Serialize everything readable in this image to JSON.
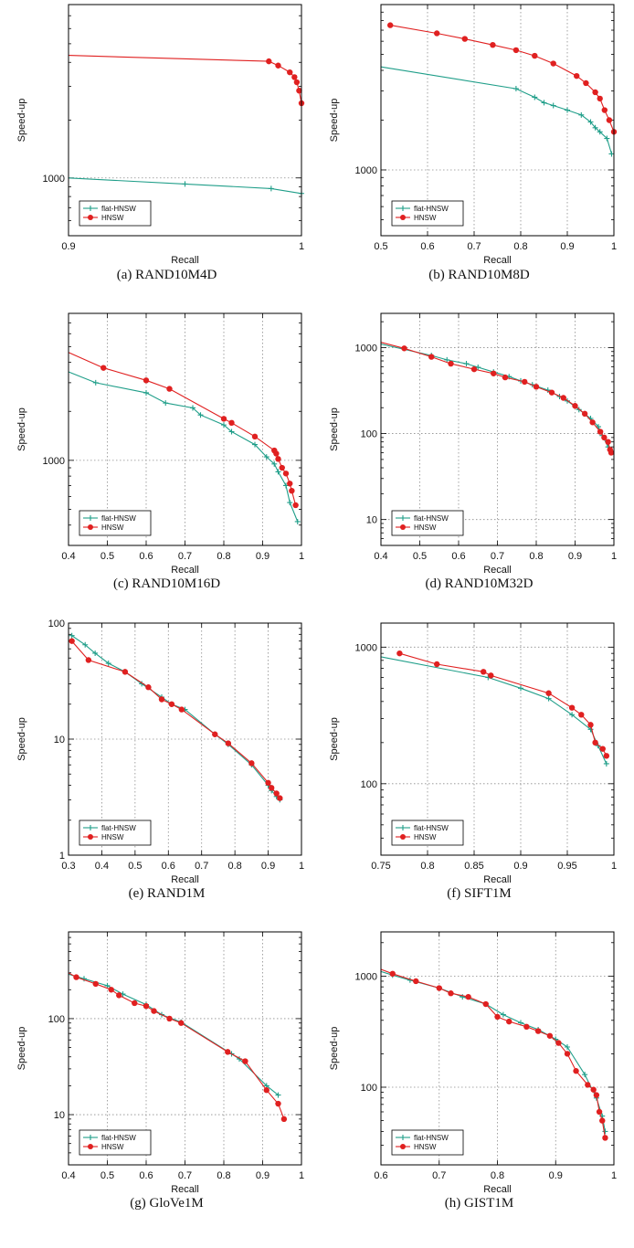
{
  "colors": {
    "flat_hnsw": "#1f9e89",
    "hnsw": "#e02020",
    "grid": "#8c8c8c",
    "axis": "#000000"
  },
  "chart_data": [
    {
      "type": "line",
      "caption": "(a) RAND10M4D",
      "scale": "log",
      "xlabel": "Recall",
      "ylabel": "Speed-up",
      "xlim": [
        0.9,
        1.0
      ],
      "ylim": [
        500,
        8000
      ],
      "xticks": [
        0.9,
        1
      ],
      "xtick_labels": [
        "0.9",
        "1"
      ],
      "yticks": [
        1000
      ],
      "ytick_labels": [
        "1000"
      ],
      "grid": true,
      "legend_position": "bottom-left",
      "series": [
        {
          "name": "flat-HNSW",
          "x": [
            0.9,
            0.95,
            0.987,
            1.0
          ],
          "y": [
            1000,
            930,
            880,
            830
          ]
        },
        {
          "name": "HNSW",
          "x": [
            0.9,
            0.986,
            0.99,
            0.995,
            0.997,
            0.998,
            0.999,
            1.0
          ],
          "y": [
            4350,
            4050,
            3850,
            3550,
            3350,
            3150,
            2850,
            2450
          ]
        }
      ]
    },
    {
      "type": "line",
      "caption": "(b) RAND10M8D",
      "scale": "log",
      "xlabel": "Recall",
      "ylabel": "Speed-up",
      "xlim": [
        0.5,
        1.0
      ],
      "ylim": [
        400,
        10000
      ],
      "xticks": [
        0.5,
        0.6,
        0.7,
        0.8,
        0.9,
        1
      ],
      "xtick_labels": [
        "0.5",
        "0.6",
        "0.7",
        "0.8",
        "0.9",
        "1"
      ],
      "yticks": [
        1000
      ],
      "ytick_labels": [
        "1000"
      ],
      "grid": true,
      "legend_position": "bottom-left",
      "series": [
        {
          "name": "flat-HNSW",
          "x": [
            0.5,
            0.79,
            0.83,
            0.85,
            0.87,
            0.9,
            0.93,
            0.95,
            0.96,
            0.97,
            0.985,
            0.995
          ],
          "y": [
            4200,
            3100,
            2750,
            2550,
            2450,
            2300,
            2150,
            1950,
            1800,
            1700,
            1550,
            1250
          ]
        },
        {
          "name": "HNSW",
          "x": [
            0.52,
            0.62,
            0.68,
            0.74,
            0.79,
            0.83,
            0.87,
            0.92,
            0.94,
            0.96,
            0.97,
            0.98,
            0.99,
            1.0
          ],
          "y": [
            7500,
            6700,
            6200,
            5700,
            5300,
            4900,
            4400,
            3700,
            3350,
            2950,
            2700,
            2300,
            2000,
            1700
          ]
        }
      ]
    },
    {
      "type": "line",
      "caption": "(c) RAND10M16D",
      "scale": "log",
      "xlabel": "Recall",
      "ylabel": "Speed-up",
      "xlim": [
        0.4,
        1.0
      ],
      "ylim": [
        300,
        8000
      ],
      "xticks": [
        0.4,
        0.5,
        0.6,
        0.7,
        0.8,
        0.9,
        1
      ],
      "xtick_labels": [
        "0.4",
        "0.5",
        "0.6",
        "0.7",
        "0.8",
        "0.9",
        "1"
      ],
      "yticks": [
        1000
      ],
      "ytick_labels": [
        "1000"
      ],
      "grid": true,
      "legend_position": "bottom-left",
      "series": [
        {
          "name": "flat-HNSW",
          "x": [
            0.4,
            0.47,
            0.6,
            0.65,
            0.72,
            0.74,
            0.8,
            0.82,
            0.88,
            0.91,
            0.93,
            0.94,
            0.96,
            0.97,
            0.99
          ],
          "y": [
            3500,
            3000,
            2600,
            2250,
            2100,
            1900,
            1650,
            1500,
            1250,
            1050,
            950,
            850,
            700,
            550,
            420
          ]
        },
        {
          "name": "HNSW",
          "x": [
            0.4,
            0.49,
            0.6,
            0.66,
            0.8,
            0.82,
            0.88,
            0.93,
            0.935,
            0.94,
            0.95,
            0.96,
            0.97,
            0.975,
            0.985
          ],
          "y": [
            4600,
            3700,
            3100,
            2750,
            1800,
            1700,
            1400,
            1150,
            1100,
            1020,
            900,
            830,
            720,
            650,
            530
          ]
        }
      ]
    },
    {
      "type": "line",
      "caption": "(d) RAND10M32D",
      "scale": "log",
      "xlabel": "Recall",
      "ylabel": "Speed-up",
      "xlim": [
        0.4,
        1.0
      ],
      "ylim": [
        5,
        2500
      ],
      "xticks": [
        0.4,
        0.5,
        0.6,
        0.7,
        0.8,
        0.9,
        1
      ],
      "xtick_labels": [
        "0.4",
        "0.5",
        "0.6",
        "0.7",
        "0.8",
        "0.9",
        "1"
      ],
      "yticks": [
        10,
        100,
        1000
      ],
      "ytick_labels": [
        "10",
        "100",
        "1000"
      ],
      "grid": true,
      "legend_position": "bottom-left",
      "series": [
        {
          "name": "flat-HNSW",
          "x": [
            0.4,
            0.53,
            0.57,
            0.62,
            0.65,
            0.69,
            0.73,
            0.76,
            0.79,
            0.83,
            0.86,
            0.88,
            0.91,
            0.94,
            0.96,
            0.97,
            0.985
          ],
          "y": [
            1100,
            810,
            720,
            650,
            590,
            520,
            460,
            410,
            370,
            320,
            270,
            240,
            190,
            150,
            120,
            95,
            70
          ]
        },
        {
          "name": "HNSW",
          "x": [
            0.4,
            0.46,
            0.53,
            0.58,
            0.64,
            0.69,
            0.72,
            0.77,
            0.8,
            0.84,
            0.87,
            0.9,
            0.925,
            0.945,
            0.965,
            0.975,
            0.985,
            0.99,
            0.993
          ],
          "y": [
            1150,
            980,
            780,
            650,
            560,
            500,
            450,
            400,
            350,
            300,
            260,
            210,
            170,
            135,
            105,
            90,
            80,
            65,
            60
          ]
        }
      ]
    },
    {
      "type": "line",
      "caption": "(e) RAND1M",
      "scale": "log",
      "xlabel": "Recall",
      "ylabel": "Speed-up",
      "xlim": [
        0.3,
        1.0
      ],
      "ylim": [
        1,
        100
      ],
      "xticks": [
        0.3,
        0.4,
        0.5,
        0.6,
        0.7,
        0.8,
        0.9,
        1
      ],
      "xtick_labels": [
        "0.3",
        "0.4",
        "0.5",
        "0.6",
        "0.7",
        "0.8",
        "0.9",
        "1"
      ],
      "yticks": [
        1,
        10,
        100
      ],
      "ytick_labels": [
        "1",
        "10",
        "100"
      ],
      "grid": true,
      "legend_position": "bottom-left",
      "series": [
        {
          "name": "flat-HNSW",
          "x": [
            0.31,
            0.35,
            0.38,
            0.42,
            0.47,
            0.52,
            0.58,
            0.61,
            0.65,
            0.74,
            0.78,
            0.85,
            0.9,
            0.91,
            0.925,
            0.935
          ],
          "y": [
            78,
            65,
            55,
            45,
            38,
            30,
            23,
            20,
            18,
            11,
            9,
            6,
            4,
            3.6,
            3.2,
            3
          ]
        },
        {
          "name": "HNSW",
          "x": [
            0.31,
            0.36,
            0.47,
            0.54,
            0.58,
            0.61,
            0.64,
            0.74,
            0.78,
            0.85,
            0.9,
            0.91,
            0.925,
            0.935
          ],
          "y": [
            70,
            48,
            38,
            28,
            22,
            20,
            18,
            11,
            9.2,
            6.2,
            4.2,
            3.8,
            3.4,
            3.1
          ]
        }
      ]
    },
    {
      "type": "line",
      "caption": "(f) SIFT1M",
      "scale": "log",
      "xlabel": "Recall",
      "ylabel": "Speed-up",
      "xlim": [
        0.75,
        1.0
      ],
      "ylim": [
        30,
        1500
      ],
      "xticks": [
        0.75,
        0.8,
        0.85,
        0.9,
        0.95,
        1
      ],
      "xtick_labels": [
        "0.75",
        "0.8",
        "0.85",
        "0.9",
        "0.95",
        "1"
      ],
      "yticks": [
        100,
        1000
      ],
      "ytick_labels": [
        "100",
        "1000"
      ],
      "grid": true,
      "legend_position": "bottom-left",
      "series": [
        {
          "name": "flat-HNSW",
          "x": [
            0.75,
            0.865,
            0.9,
            0.93,
            0.955,
            0.975,
            0.983,
            0.992
          ],
          "y": [
            850,
            600,
            500,
            420,
            320,
            250,
            190,
            140
          ]
        },
        {
          "name": "HNSW",
          "x": [
            0.77,
            0.81,
            0.86,
            0.868,
            0.93,
            0.955,
            0.965,
            0.975,
            0.98,
            0.988,
            0.992
          ],
          "y": [
            900,
            750,
            660,
            620,
            460,
            360,
            320,
            270,
            200,
            180,
            160
          ]
        }
      ]
    },
    {
      "type": "line",
      "caption": "(g) GloVe1M",
      "scale": "log",
      "xlabel": "Recall",
      "ylabel": "Speed-up",
      "xlim": [
        0.4,
        1.0
      ],
      "ylim": [
        3,
        800
      ],
      "xticks": [
        0.4,
        0.5,
        0.6,
        0.7,
        0.8,
        0.9,
        1
      ],
      "xtick_labels": [
        "0.4",
        "0.5",
        "0.6",
        "0.7",
        "0.8",
        "0.9",
        "1"
      ],
      "yticks": [
        10,
        100
      ],
      "ytick_labels": [
        "10",
        "100"
      ],
      "grid": true,
      "legend_position": "bottom-left",
      "series": [
        {
          "name": "flat-HNSW",
          "x": [
            0.4,
            0.44,
            0.5,
            0.54,
            0.6,
            0.64,
            0.69,
            0.82,
            0.84,
            0.91,
            0.94
          ],
          "y": [
            290,
            260,
            220,
            180,
            140,
            110,
            92,
            43,
            38,
            20,
            16
          ]
        },
        {
          "name": "HNSW",
          "x": [
            0.4,
            0.42,
            0.47,
            0.51,
            0.53,
            0.57,
            0.6,
            0.62,
            0.66,
            0.69,
            0.81,
            0.855,
            0.91,
            0.94,
            0.955
          ],
          "y": [
            300,
            270,
            230,
            200,
            175,
            145,
            135,
            120,
            100,
            90,
            45,
            36,
            18,
            13,
            9
          ]
        }
      ]
    },
    {
      "type": "line",
      "caption": "(h) GIST1M",
      "scale": "log",
      "xlabel": "Recall",
      "ylabel": "Speed-up",
      "xlim": [
        0.6,
        1.0
      ],
      "ylim": [
        20,
        2500
      ],
      "xticks": [
        0.6,
        0.7,
        0.8,
        0.9,
        1
      ],
      "xtick_labels": [
        "0.6",
        "0.7",
        "0.8",
        "0.9",
        "1"
      ],
      "yticks": [
        100,
        1000
      ],
      "ytick_labels": [
        "100",
        "1000"
      ],
      "grid": true,
      "legend_position": "bottom-left",
      "series": [
        {
          "name": "flat-HNSW",
          "x": [
            0.6,
            0.62,
            0.65,
            0.7,
            0.74,
            0.78,
            0.81,
            0.84,
            0.87,
            0.9,
            0.92,
            0.95,
            0.97,
            0.98,
            0.985
          ],
          "y": [
            1100,
            1020,
            920,
            780,
            650,
            560,
            450,
            380,
            330,
            270,
            230,
            130,
            80,
            55,
            40
          ]
        },
        {
          "name": "HNSW",
          "x": [
            0.6,
            0.62,
            0.66,
            0.7,
            0.72,
            0.75,
            0.78,
            0.8,
            0.82,
            0.85,
            0.87,
            0.89,
            0.905,
            0.92,
            0.935,
            0.955,
            0.965,
            0.97,
            0.975,
            0.98,
            0.985
          ],
          "y": [
            1150,
            1050,
            900,
            780,
            700,
            650,
            560,
            430,
            390,
            350,
            320,
            290,
            250,
            200,
            140,
            105,
            95,
            85,
            60,
            50,
            35
          ]
        }
      ]
    }
  ]
}
